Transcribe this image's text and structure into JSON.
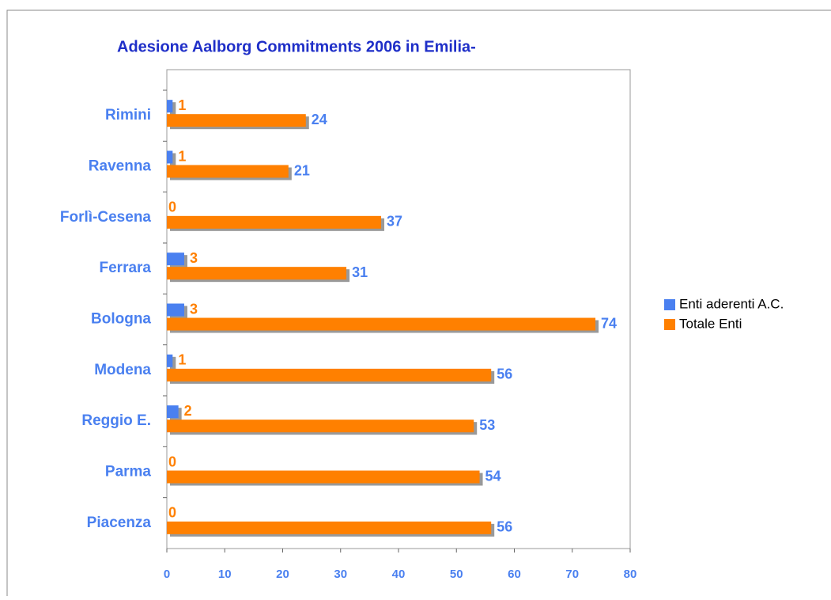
{
  "chart_data": {
    "type": "hbar",
    "title": "Adesione Aalborg Commitments 2006 in Emilia-",
    "categories": [
      "Rimini",
      "Ravenna",
      "Forlì-Cesena",
      "Ferrara",
      "Bologna",
      "Modena",
      "Reggio E.",
      "Parma",
      "Piacenza"
    ],
    "series": [
      {
        "name": "Enti aderenti A.C.",
        "color": "#4a80f0",
        "values": [
          1,
          1,
          0,
          3,
          3,
          1,
          2,
          0,
          0
        ]
      },
      {
        "name": "Totale Enti",
        "color": "#ff8000",
        "values": [
          24,
          21,
          37,
          31,
          74,
          56,
          53,
          54,
          56
        ]
      }
    ],
    "xlim": [
      0,
      80
    ],
    "xticks": [
      0,
      10,
      20,
      30,
      40,
      50,
      60,
      70,
      80
    ],
    "legend": "right"
  }
}
